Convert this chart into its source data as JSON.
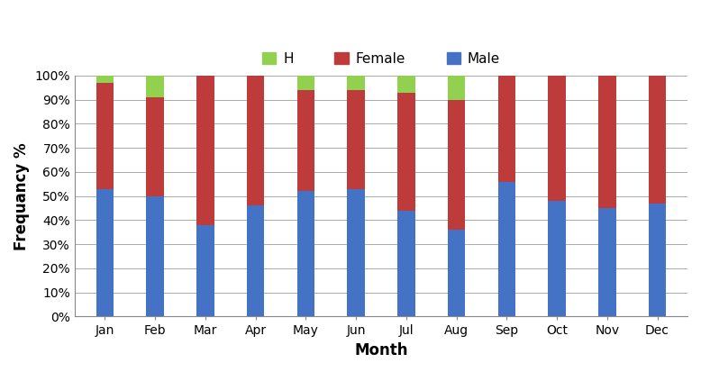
{
  "months": [
    "Jan",
    "Feb",
    "Mar",
    "Apr",
    "May",
    "Jun",
    "Jul",
    "Aug",
    "Sep",
    "Oct",
    "Nov",
    "Dec"
  ],
  "male": [
    53,
    50,
    38,
    46,
    52,
    53,
    44,
    36,
    56,
    48,
    45,
    47
  ],
  "female": [
    44,
    41,
    62,
    54,
    42,
    41,
    49,
    54,
    44,
    52,
    55,
    53
  ],
  "H": [
    3,
    9,
    0,
    0,
    6,
    6,
    7,
    10,
    0,
    0,
    0,
    0
  ],
  "male_color": "#4472C4",
  "female_color": "#BE3B3B",
  "H_color": "#92D050",
  "xlabel": "Month",
  "ylabel": "Frequancy %",
  "ytick_labels": [
    "0%",
    "10%",
    "20%",
    "30%",
    "40%",
    "50%",
    "60%",
    "70%",
    "80%",
    "90%",
    "100%"
  ],
  "yticks": [
    0,
    10,
    20,
    30,
    40,
    50,
    60,
    70,
    80,
    90,
    100
  ],
  "bar_width": 0.35,
  "background_color": "#FFFFFF",
  "grid_color": "#AAAAAA",
  "axis_label_fontsize": 12,
  "tick_fontsize": 10,
  "legend_fontsize": 11
}
